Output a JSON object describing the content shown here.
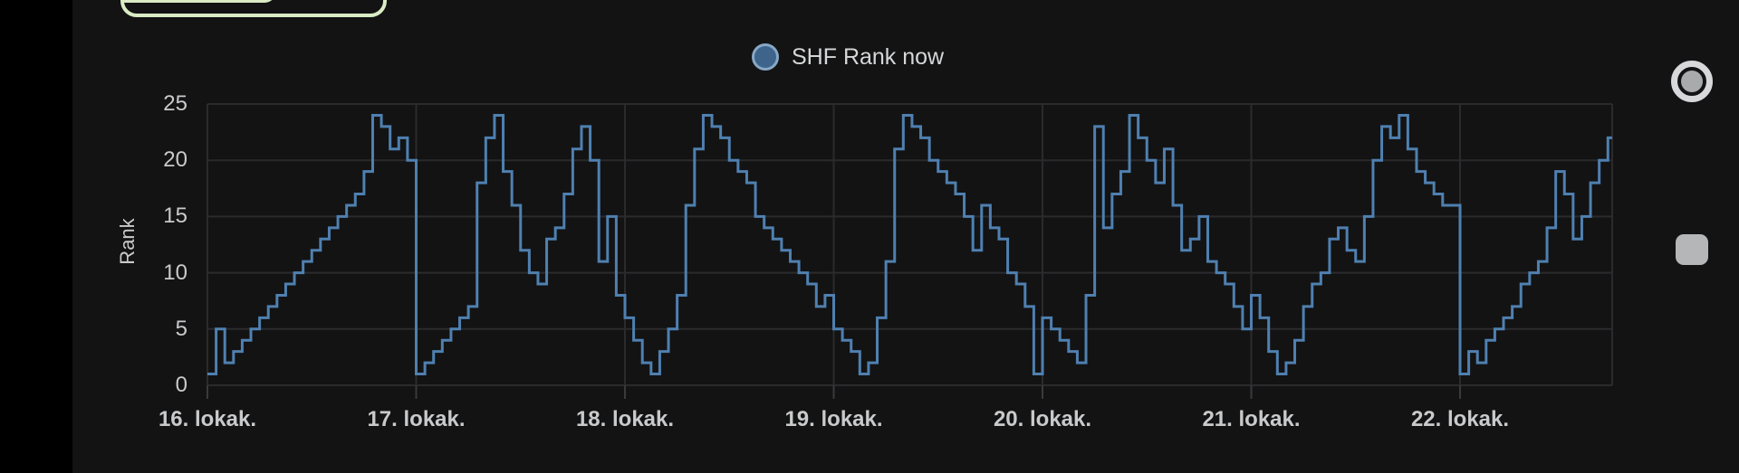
{
  "colors": {
    "background": "#131314",
    "bezel": "#000000",
    "accent_green": "#D9ECC4",
    "line_blue": "#4F80B0",
    "legend_dot_fill": "#3E648C",
    "legend_dot_border": "#87A7C6",
    "grid": "#2B2B2D",
    "tick_text": "#C9CACB",
    "legend_text": "#D6D7D8",
    "icon_gray": "#D8D8DA",
    "icon_gray_dim": "#A9AAAC"
  },
  "legend": {
    "label": "SHF Rank now"
  },
  "y_axis": {
    "label": "Rank",
    "ticks": [
      25,
      20,
      15,
      10,
      5,
      0
    ]
  },
  "x_axis": {
    "ticks": [
      "16. lokak.",
      "17. lokak.",
      "18. lokak.",
      "19. lokak.",
      "20. lokak.",
      "21. lokak.",
      "22. lokak."
    ]
  },
  "side_icons": {
    "record": "record-circle",
    "stop": "rounded-square"
  },
  "chart_data": {
    "type": "line",
    "line_mode": "step-after",
    "title": "SHF Rank now",
    "xlabel": "",
    "ylabel": "Rank",
    "ylim": [
      0,
      25
    ],
    "y_ticks": [
      0,
      5,
      10,
      15,
      20,
      25
    ],
    "x_tick_labels": [
      "16. lokak.",
      "17. lokak.",
      "18. lokak.",
      "19. lokak.",
      "20. lokak.",
      "21. lokak.",
      "22. lokak."
    ],
    "x_unit": "hour",
    "hours_per_tick": 24,
    "grid": true,
    "legend_position": "top-center",
    "series": [
      {
        "name": "SHF Rank now",
        "color": "#4F80B0",
        "values_by_day": {
          "16. lokak.": [
            1,
            5,
            2,
            3,
            4,
            5,
            6,
            7,
            8,
            9,
            10,
            11,
            12,
            13,
            14,
            15,
            16,
            17,
            19,
            24,
            23,
            21,
            22,
            20
          ],
          "17. lokak.": [
            1,
            2,
            3,
            4,
            5,
            6,
            7,
            18,
            22,
            24,
            19,
            16,
            12,
            10,
            9,
            13,
            14,
            17,
            21,
            23,
            20,
            11,
            15,
            8
          ],
          "18. lokak.": [
            6,
            4,
            2,
            1,
            3,
            5,
            8,
            16,
            21,
            24,
            23,
            22,
            20,
            19,
            18,
            15,
            14,
            13,
            12,
            11,
            10,
            9,
            7,
            8
          ],
          "19. lokak.": [
            5,
            4,
            3,
            1,
            2,
            6,
            11,
            21,
            24,
            23,
            22,
            20,
            19,
            18,
            17,
            15,
            12,
            16,
            14,
            13,
            10,
            9,
            7,
            1
          ],
          "20. lokak.": [
            6,
            5,
            4,
            3,
            2,
            8,
            23,
            14,
            17,
            19,
            24,
            22,
            20,
            18,
            21,
            16,
            12,
            13,
            15,
            11,
            10,
            9,
            7,
            5
          ],
          "21. lokak.": [
            8,
            6,
            3,
            1,
            2,
            4,
            7,
            9,
            10,
            13,
            14,
            12,
            11,
            15,
            20,
            23,
            22,
            24,
            21,
            19,
            18,
            17,
            16,
            16
          ],
          "22. lokak.": [
            1,
            3,
            2,
            4,
            5,
            6,
            7,
            9,
            10,
            11,
            14,
            19,
            17,
            13,
            15,
            18,
            20,
            22
          ]
        }
      }
    ]
  }
}
